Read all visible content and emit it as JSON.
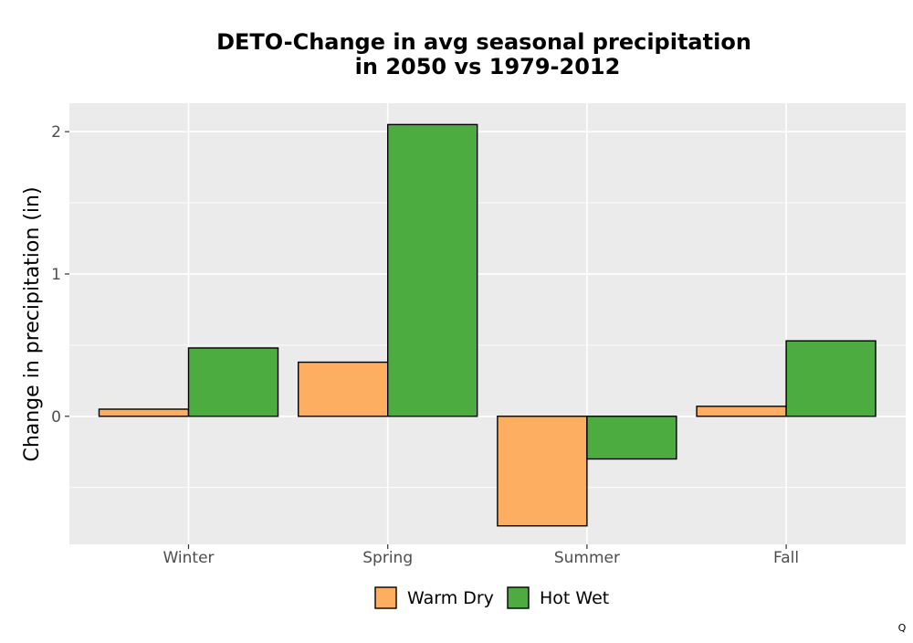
{
  "chart_data": {
    "type": "bar",
    "title": [
      "DETO-Change in avg seasonal precipitation",
      "in 2050 vs 1979-2012"
    ],
    "xlabel": "",
    "ylabel": "Change in precipitation (in)",
    "categories": [
      "Winter",
      "Spring",
      "Summer",
      "Fall"
    ],
    "series": [
      {
        "name": "Warm Dry",
        "color": "#FDAE61",
        "values": [
          0.05,
          0.38,
          -0.77,
          0.07
        ]
      },
      {
        "name": "Hot Wet",
        "color": "#4DAC3F",
        "values": [
          0.48,
          2.05,
          -0.3,
          0.53
        ]
      }
    ],
    "ylim": [
      -0.9,
      2.2
    ],
    "yticks": [
      0,
      1,
      2
    ],
    "yticks_minor": [
      -0.5,
      0.5,
      1.5
    ],
    "grid": true,
    "panel_background": "#EBEBEB",
    "legend_position": "bottom"
  },
  "corner_mark": "Q"
}
